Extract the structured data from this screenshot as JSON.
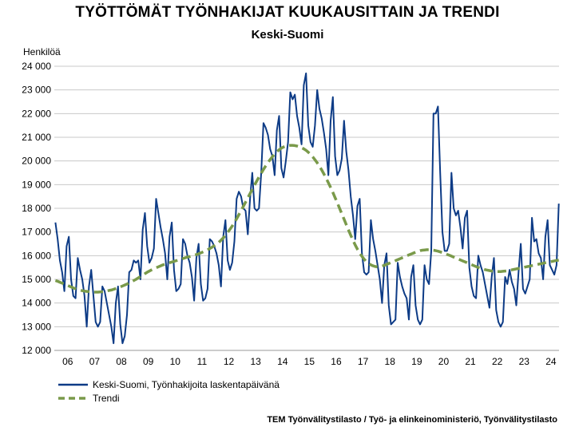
{
  "header": {
    "title": "TYÖTTÖMÄT TYÖNHAKIJAT KUUKAUSITTAIN JA TRENDI",
    "subtitle": "Keski-Suomi"
  },
  "footer": {
    "source": "TEM Työnvälitystilasto / Työ- ja elinkeinoministeriö, Työnvälitystilasto"
  },
  "colors": {
    "series": "#0d3b86",
    "trend": "#7a9a4a",
    "grid": "#c8c8c8",
    "axis": "#9a9a9a"
  },
  "chart_data": {
    "type": "line",
    "title": "TYÖTTÖMÄT TYÖNHAKIJAT KUUKAUSITTAIN JA TRENDI",
    "subtitle": "Keski-Suomi",
    "ylabel": "Henkilöä",
    "xlabel": "",
    "ylim": [
      12000,
      24000
    ],
    "yticks": [
      12000,
      13000,
      14000,
      15000,
      16000,
      17000,
      18000,
      19000,
      20000,
      21000,
      22000,
      23000,
      24000
    ],
    "ytick_labels": [
      "12 000",
      "13 000",
      "14 000",
      "15 000",
      "16 000",
      "17 000",
      "18 000",
      "19 000",
      "20 000",
      "21 000",
      "22 000",
      "23 000",
      "24 000"
    ],
    "grid": true,
    "legend_position": "bottom-left",
    "categories": [
      "06",
      "07",
      "08",
      "09",
      "10",
      "11",
      "12",
      "13",
      "14",
      "15",
      "16",
      "17",
      "18",
      "19",
      "20",
      "21",
      "22",
      "23",
      "24"
    ],
    "series": [
      {
        "name": "Keski-Suomi, Työnhakijoita laskentapäivänä",
        "style": "solid",
        "color": "#0d3b86",
        "years": {
          "06": [
            17400,
            16700,
            15800,
            15300,
            14500,
            16400,
            16800,
            15000,
            14300,
            14200,
            15900,
            15400
          ],
          "07": [
            15000,
            14300,
            13000,
            14700,
            15400,
            14300,
            13200,
            13000,
            13200,
            14700,
            14500,
            14000
          ],
          "08": [
            13500,
            13000,
            12300,
            14000,
            14700,
            13100,
            12300,
            12600,
            13500,
            15300,
            15400,
            15800
          ],
          "09": [
            15700,
            15800,
            15000,
            17100,
            17800,
            16400,
            15700,
            15900,
            16300,
            18400,
            17800,
            17200
          ],
          "10": [
            16700,
            16100,
            15000,
            16800,
            17400,
            15400,
            14500,
            14600,
            14800,
            16700,
            16500,
            16000
          ],
          "11": [
            15700,
            15100,
            14100,
            15900,
            16500,
            14800,
            14100,
            14200,
            14600,
            16700,
            16600,
            16400
          ],
          "12": [
            16100,
            15600,
            14700,
            16800,
            17500,
            15800,
            15400,
            15700,
            16600,
            18400,
            18700,
            18500
          ],
          "13": [
            18000,
            17900,
            16900,
            18400,
            19500,
            18000,
            17900,
            18000,
            19500,
            21600,
            21400,
            21100
          ],
          "14": [
            20500,
            20200,
            19400,
            21300,
            21900,
            19700,
            19300,
            20000,
            20800,
            22900,
            22600,
            22800
          ],
          "15": [
            21900,
            21400,
            20700,
            23200,
            23700,
            21500,
            20800,
            20600,
            21500,
            23000,
            22200,
            21800
          ],
          "16": [
            21200,
            20500,
            19400,
            21700,
            22700,
            20200,
            19400,
            19600,
            20100,
            21700,
            20400,
            19600
          ],
          "17": [
            18500,
            17700,
            16700,
            18100,
            18400,
            16100,
            15300,
            15200,
            15300,
            17500,
            16700,
            16200
          ],
          "18": [
            15600,
            15000,
            14000,
            15600,
            16100,
            13900,
            13100,
            13200,
            13300,
            15700,
            15100,
            14700
          ],
          "19": [
            14400,
            14200,
            13300,
            15100,
            15600,
            13900,
            13300,
            13100,
            13300,
            15600,
            15000,
            14800
          ],
          "20": [
            16200,
            22000,
            22000,
            22300,
            19500,
            17000,
            16200,
            16200,
            16500,
            19500,
            18000,
            17700
          ],
          "21": [
            17900,
            17200,
            16300,
            17600,
            17900,
            15500,
            14700,
            14300,
            14200,
            16000,
            15600,
            15300
          ],
          "22": [
            14800,
            14300,
            13800,
            15100,
            15900,
            13700,
            13200,
            13000,
            13200,
            15100,
            14800,
            15400
          ],
          "23": [
            14900,
            14600,
            13900,
            15300,
            16500,
            14600,
            14400,
            14700,
            15000,
            17600,
            16600,
            16700
          ],
          "24": [
            16100,
            15900,
            15000,
            16800,
            17500,
            15600,
            15400,
            15200,
            15600,
            18200
          ]
        }
      },
      {
        "name": "Trendi",
        "style": "dashed",
        "color": "#7a9a4a",
        "years": {
          "06": [
            14950,
            14920,
            14880,
            14840,
            14800,
            14760,
            14720,
            14680,
            14640,
            14600,
            14570,
            14540
          ],
          "07": [
            14520,
            14500,
            14490,
            14480,
            14470,
            14460,
            14460,
            14460,
            14470,
            14480,
            14490,
            14510
          ],
          "08": [
            14530,
            14550,
            14580,
            14610,
            14640,
            14680,
            14720,
            14760,
            14800,
            14850,
            14900,
            14950
          ],
          "09": [
            15000,
            15060,
            15120,
            15180,
            15240,
            15300,
            15350,
            15400,
            15450,
            15490,
            15530,
            15570
          ],
          "10": [
            15610,
            15640,
            15670,
            15700,
            15730,
            15760,
            15790,
            15820,
            15850,
            15880,
            15910,
            15940
          ],
          "11": [
            15960,
            15990,
            16020,
            16050,
            16080,
            16120,
            16160,
            16200,
            16250,
            16300,
            16360,
            16420
          ],
          "12": [
            16480,
            16560,
            16650,
            16750,
            16860,
            16980,
            17110,
            17250,
            17400,
            17560,
            17730,
            17900
          ],
          "13": [
            18080,
            18260,
            18440,
            18620,
            18800,
            18980,
            19150,
            19320,
            19480,
            19640,
            19790,
            19930
          ],
          "14": [
            20060,
            20180,
            20290,
            20390,
            20470,
            20540,
            20590,
            20630,
            20650,
            20660,
            20660,
            20650
          ],
          "15": [
            20630,
            20600,
            20560,
            20510,
            20450,
            20370,
            20280,
            20170,
            20050,
            19920,
            19780,
            19620
          ],
          "16": [
            19450,
            19270,
            19080,
            18880,
            18670,
            18450,
            18230,
            18000,
            17770,
            17540,
            17310,
            17080
          ],
          "17": [
            16860,
            16650,
            16450,
            16270,
            16110,
            15970,
            15850,
            15750,
            15670,
            15610,
            15570,
            15540
          ],
          "18": [
            15530,
            15540,
            15560,
            15590,
            15630,
            15670,
            15710,
            15750,
            15790,
            15830,
            15870,
            15910
          ],
          "19": [
            15950,
            15990,
            16030,
            16070,
            16110,
            16150,
            16180,
            16210,
            16230,
            16240,
            16250,
            16250
          ],
          "20": [
            16240,
            16230,
            16210,
            16190,
            16160,
            16130,
            16100,
            16060,
            16020,
            15980,
            15940,
            15900
          ],
          "21": [
            15860,
            15820,
            15780,
            15740,
            15700,
            15660,
            15620,
            15580,
            15540,
            15500,
            15470,
            15440
          ],
          "22": [
            15410,
            15390,
            15370,
            15350,
            15340,
            15330,
            15330,
            15330,
            15340,
            15350,
            15360,
            15380
          ],
          "23": [
            15400,
            15420,
            15440,
            15460,
            15480,
            15500,
            15520,
            15540,
            15560,
            15580,
            15600,
            15620
          ],
          "24": [
            15640,
            15660,
            15680,
            15700,
            15720,
            15740,
            15760,
            15780,
            15800,
            15810
          ]
        }
      }
    ]
  }
}
